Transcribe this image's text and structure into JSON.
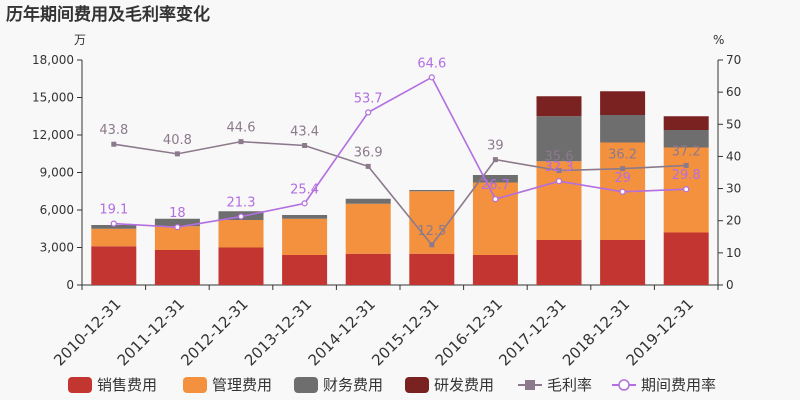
{
  "chart_data": {
    "type": "bar",
    "title": "历年期间费用及毛利率变化",
    "y_left_unit": "万",
    "y_right_unit": "%",
    "categories": [
      "2010-12-31",
      "2011-12-31",
      "2012-12-31",
      "2013-12-31",
      "2014-12-31",
      "2015-12-31",
      "2016-12-31",
      "2017-12-31",
      "2018-12-31",
      "2019-12-31"
    ],
    "y_left": {
      "min": 0,
      "max": 18000,
      "ticks": [
        "0",
        "3,000",
        "6,000",
        "9,000",
        "12,000",
        "15,000",
        "18,000"
      ]
    },
    "y_right": {
      "min": 0,
      "max": 70,
      "ticks": [
        "0",
        "10",
        "20",
        "30",
        "40",
        "50",
        "60",
        "70"
      ]
    },
    "bar_series": [
      {
        "name": "销售费用",
        "color": "#c23531",
        "values": [
          3100,
          2800,
          3000,
          2400,
          2500,
          2500,
          2400,
          3600,
          3600,
          4200
        ]
      },
      {
        "name": "管理费用",
        "color": "#f4913e",
        "values": [
          1400,
          1900,
          2200,
          2900,
          4000,
          5000,
          5800,
          6300,
          7800,
          6800
        ]
      },
      {
        "name": "财务费用",
        "color": "#6e6e6e",
        "values": [
          300,
          600,
          700,
          300,
          400,
          100,
          600,
          3600,
          2200,
          1400
        ]
      },
      {
        "name": "研发费用",
        "color": "#7a2222",
        "values": [
          0,
          0,
          0,
          0,
          0,
          0,
          0,
          1600,
          1900,
          1100
        ]
      }
    ],
    "line_series": [
      {
        "name": "毛利率",
        "color": "#8c7a8c",
        "values": [
          43.8,
          40.8,
          44.6,
          43.4,
          36.9,
          12.5,
          39,
          35.6,
          36.2,
          37.2
        ],
        "labels": [
          "43.8",
          "40.8",
          "44.6",
          "43.4",
          "36.9",
          "12.5",
          "39",
          "35.6",
          "36.2",
          "37.2"
        ]
      },
      {
        "name": "期间费用率",
        "color": "#b36ee0",
        "values": [
          19.1,
          18,
          21.3,
          25.4,
          53.7,
          64.6,
          26.7,
          32.3,
          29,
          29.8
        ],
        "labels": [
          "19.1",
          "18",
          "21.3",
          "25.4",
          "53.7",
          "64.6",
          "26.7",
          "32.3",
          "29",
          "29.8"
        ]
      }
    ],
    "legend_position": "bottom",
    "grid": false
  }
}
